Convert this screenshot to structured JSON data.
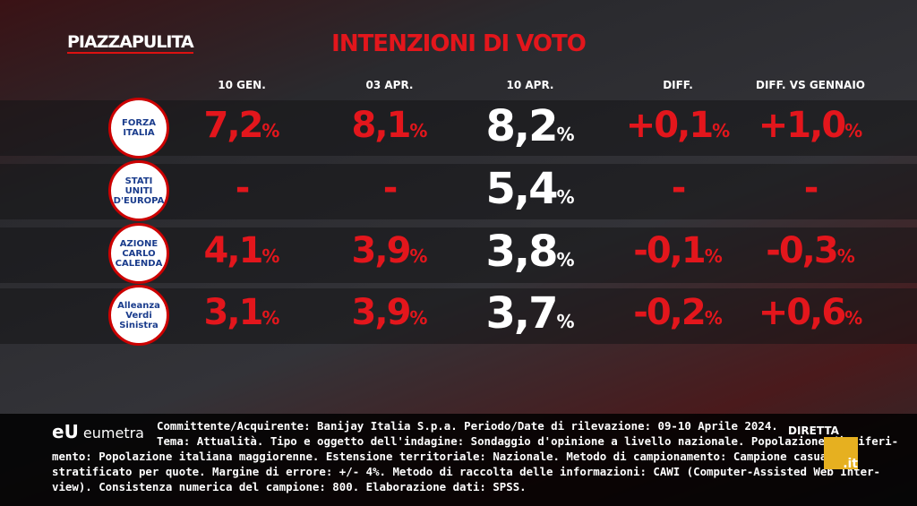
{
  "header": {
    "brand": [
      "PIAZZA",
      "PULITA"
    ],
    "title": "INTENZIONI DI VOTO"
  },
  "table": {
    "columns": [
      "10 GEN.",
      "03 APR.",
      "10 APR.",
      "DIFF.",
      "DIFF. VS GENNAIO"
    ],
    "rows": [
      {
        "logo": [
          "FORZA",
          "ITALIA"
        ],
        "cells": [
          "7,2%",
          "8,1%",
          "8,2%",
          "+0,1%",
          "+1,0%"
        ]
      },
      {
        "logo": [
          "STATI UNITI",
          "D'EUROPA"
        ],
        "cells": [
          "-",
          "-",
          "5,4%",
          "-",
          "-"
        ]
      },
      {
        "logo": [
          "AZIONE",
          "CARLO",
          "CALENDA"
        ],
        "cells": [
          "4,1%",
          "3,9%",
          "3,8%",
          "-0,1%",
          "-0,3%"
        ]
      },
      {
        "logo": [
          "Alleanza",
          "Verdi",
          "Sinistra"
        ],
        "cells": [
          "3,1%",
          "3,9%",
          "3,7%",
          "-0,2%",
          "+0,6%"
        ]
      }
    ]
  },
  "footer": {
    "source": "eumetra",
    "lines": [
      "Committente/Acquirente: Banijay Italia S.p.a. Periodo/Date di rilevazione: 09-10 Aprile 2024.",
      "Tema: Attualità. Tipo e oggetto dell'indagine: Sondaggio d'opinione a livello nazionale. Popolazione di riferi-",
      "mento: Popolazione italiana maggiorenne. Estensione territoriale: Nazionale. Metodo di campionamento: Campione casuale",
      "stratificato per quote. Margine di errore: +/- 4%. Metodo di raccolta delle informazioni: CAWI (Computer-Assisted Web Inter-",
      "view). Consistenza numerica del campione: 800. Elaborazione dati: SPSS."
    ],
    "badge": [
      "DIRETTA",
      ".it"
    ]
  }
}
